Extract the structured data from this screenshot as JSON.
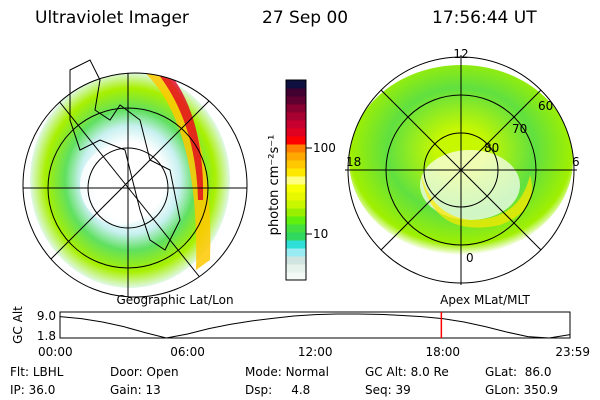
{
  "header": {
    "instrument": "Ultraviolet Imager",
    "date": "27 Sep 00",
    "time": "17:56:44 UT"
  },
  "left_panel": {
    "label": "Geographic Lat/Lon"
  },
  "right_panel": {
    "label": "Apex MLat/MLT",
    "mlt_labels": [
      "12",
      "18",
      "6",
      "0"
    ],
    "lat_labels": [
      "60",
      "70",
      "80"
    ]
  },
  "colorbar": {
    "unit": "photon cm⁻²s⁻¹",
    "ticks": [
      "100",
      "10"
    ],
    "scale": "log",
    "colors": [
      "#f4faf6",
      "#e6f2ec",
      "#d0e4e0",
      "#98ecf2",
      "#2ee0d8",
      "#30d860",
      "#44e040",
      "#60f010",
      "#98f000",
      "#c8f800",
      "#e8f800",
      "#f8ff00",
      "#ffff80",
      "#ffe800",
      "#ffc800",
      "#ffa800",
      "#ff8000",
      "#ff0000",
      "#e00020",
      "#c80030",
      "#a80030",
      "#880030",
      "#600030",
      "#400030",
      "#101040"
    ]
  },
  "chart_data": {
    "type": "line",
    "ylabel": "GC Alt",
    "yticks": [
      "9.0",
      "1.8"
    ],
    "xticks": [
      "00:00",
      "06:00",
      "12:00",
      "18:00",
      "23:59"
    ],
    "x": [
      "00:00",
      "01:00",
      "02:00",
      "03:00",
      "04:00",
      "05:00",
      "06:00",
      "07:00",
      "08:00",
      "09:00",
      "10:00",
      "11:00",
      "12:00",
      "13:00",
      "14:00",
      "15:00",
      "16:00",
      "17:00",
      "18:00",
      "19:00",
      "20:00",
      "21:00",
      "22:00",
      "23:00",
      "23:59"
    ],
    "values": [
      8.2,
      7.6,
      6.6,
      5.2,
      3.4,
      1.8,
      3.0,
      4.6,
      5.9,
      6.9,
      7.7,
      8.4,
      8.8,
      9.0,
      9.0,
      8.9,
      8.6,
      8.2,
      7.6,
      6.6,
      5.2,
      3.6,
      2.2,
      1.8,
      2.8
    ],
    "ylim": [
      1.8,
      9.0
    ],
    "current_time_marker": "17:56",
    "marker_color": "#ff0000"
  },
  "status": {
    "flt_label": "Flt:",
    "flt": "LBHL",
    "door_label": "Door:",
    "door": "Open",
    "mode_label": "Mode:",
    "mode": "Normal",
    "gcalt_label": "GC Alt:",
    "gcalt": "8.0 Re",
    "glat_label": "GLat:",
    "glat": "86.0",
    "ip_label": "IP:",
    "ip": "36.0",
    "gain_label": "Gain:",
    "gain": "13",
    "dsp_label": "Dsp:",
    "dsp": "4.8",
    "seq_label": "Seq:",
    "seq": "39",
    "glon_label": "GLon:",
    "glon": "350.9"
  }
}
